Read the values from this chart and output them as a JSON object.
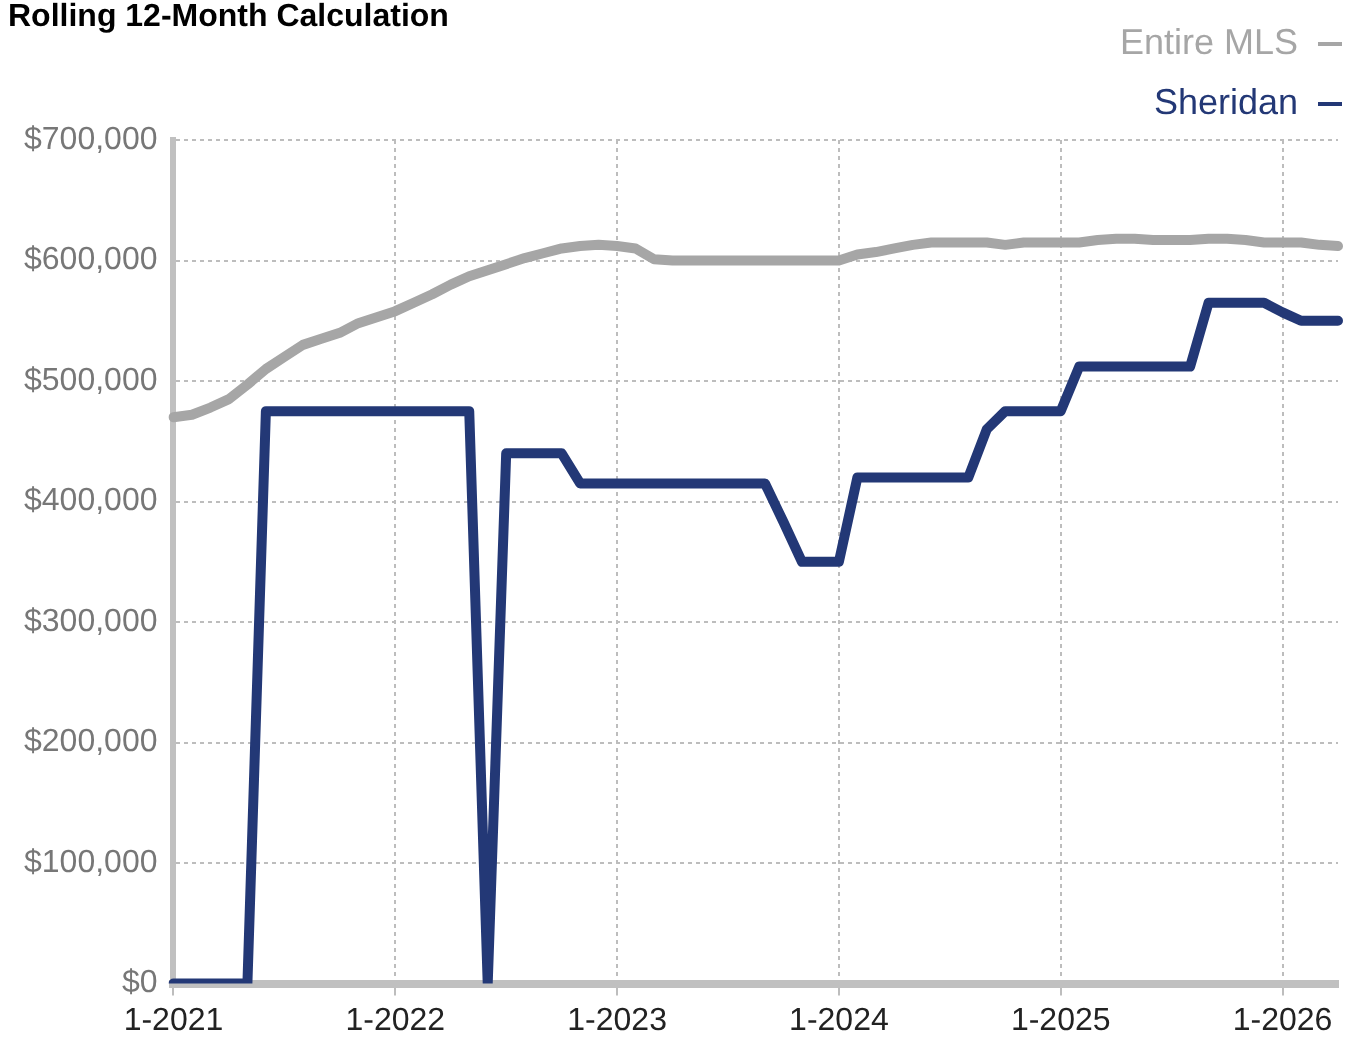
{
  "chart_data": {
    "type": "line",
    "title": "Rolling 12-Month Calculation",
    "categories": [
      "1-2021",
      null,
      null,
      null,
      null,
      null,
      null,
      null,
      null,
      null,
      null,
      null,
      "1-2022",
      null,
      null,
      null,
      null,
      null,
      null,
      null,
      null,
      null,
      null,
      null,
      "1-2023",
      null,
      null,
      null,
      null,
      null,
      null,
      null,
      null,
      null,
      null,
      null,
      "1-2024",
      null,
      null,
      null,
      null,
      null,
      null,
      null,
      null,
      null,
      null,
      null,
      "1-2025",
      null,
      null,
      null,
      null,
      null,
      null,
      null,
      null,
      null,
      null,
      null,
      "1-2026",
      null,
      null,
      null
    ],
    "series": [
      {
        "name": "Entire MLS",
        "color": "#a6a6a6",
        "values": [
          470000,
          472000,
          478000,
          485000,
          497000,
          510000,
          520000,
          530000,
          535000,
          540000,
          548000,
          553000,
          558000,
          565000,
          572000,
          580000,
          587000,
          592000,
          597000,
          602000,
          606000,
          610000,
          612000,
          613000,
          612000,
          610000,
          601000,
          600000,
          600000,
          600000,
          600000,
          600000,
          600000,
          600000,
          600000,
          600000,
          600000,
          605000,
          607000,
          610000,
          613000,
          615000,
          615000,
          615000,
          615000,
          613000,
          615000,
          615000,
          615000,
          615000,
          617000,
          618000,
          618000,
          617000,
          617000,
          617000,
          618000,
          618000,
          617000,
          615000,
          615000,
          615000,
          613000,
          612000
        ]
      },
      {
        "name": "Sheridan",
        "color": "#233876",
        "values": [
          0,
          0,
          0,
          0,
          0,
          475000,
          475000,
          475000,
          475000,
          475000,
          475000,
          475000,
          475000,
          475000,
          475000,
          475000,
          475000,
          0,
          440000,
          440000,
          440000,
          440000,
          415000,
          415000,
          415000,
          415000,
          415000,
          415000,
          415000,
          415000,
          415000,
          415000,
          415000,
          383000,
          350000,
          350000,
          350000,
          420000,
          420000,
          420000,
          420000,
          420000,
          420000,
          420000,
          460000,
          475000,
          475000,
          475000,
          475000,
          512000,
          512000,
          512000,
          512000,
          512000,
          512000,
          512000,
          565000,
          565000,
          565000,
          565000,
          557000,
          550000,
          550000,
          550000
        ]
      }
    ],
    "ylim": [
      0,
      700000
    ],
    "yticks": [
      {
        "value": 0,
        "label": "$0"
      },
      {
        "value": 100000,
        "label": "$100,000"
      },
      {
        "value": 200000,
        "label": "$200,000"
      },
      {
        "value": 300000,
        "label": "$300,000"
      },
      {
        "value": 400000,
        "label": "$400,000"
      },
      {
        "value": 500000,
        "label": "$500,000"
      },
      {
        "value": 600000,
        "label": "$600,000"
      },
      {
        "value": 700000,
        "label": "$700,000"
      }
    ],
    "grid": true,
    "legend": "top right",
    "marker": "none",
    "line_style": "solid"
  }
}
